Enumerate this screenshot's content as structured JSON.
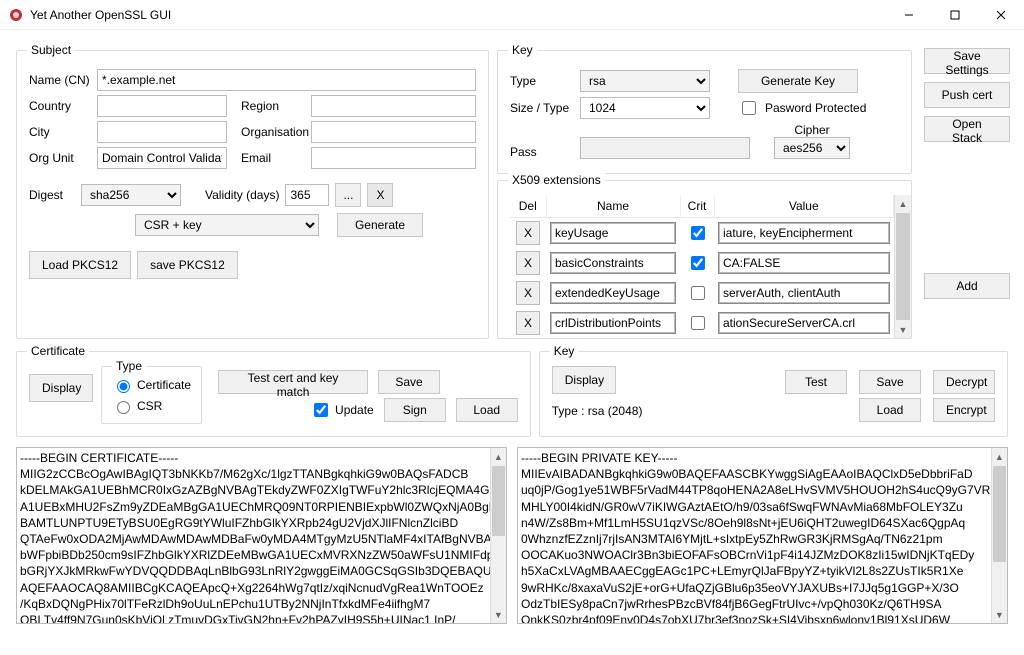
{
  "window": {
    "title": "Yet Another OpenSSL GUI"
  },
  "sidebar_buttons": {
    "save_settings": "Save Settings",
    "push_cert": "Push cert",
    "open_stack": "Open Stack",
    "add": "Add"
  },
  "subject": {
    "legend": "Subject",
    "name_label": "Name (CN)",
    "name_value": "*.example.net",
    "country_label": "Country",
    "country_value": "",
    "region_label": "Region",
    "region_value": "",
    "city_label": "City",
    "city_value": "",
    "org_label": "Organisation",
    "org_value": "",
    "orgunit_label": "Org Unit",
    "orgunit_value": "Domain Control Validated",
    "email_label": "Email",
    "email_value": "",
    "digest_label": "Digest",
    "digest_value": "sha256",
    "validity_label": "Validity (days)",
    "validity_value": "365",
    "mode_value": "CSR + key",
    "generate": "Generate",
    "dots_btn": "...",
    "x_btn": "X",
    "load_pkcs12": "Load PKCS12",
    "save_pkcs12": "save PKCS12"
  },
  "key_cfg": {
    "legend": "Key",
    "type_label": "Type",
    "type_value": "rsa",
    "size_label": "Size / Type",
    "size_value": "1024",
    "pw_protected_label": "Pasword Protected",
    "generate_key": "Generate Key",
    "pass_label": "Pass",
    "pass_value": "",
    "cipher_label": "Cipher",
    "cipher_value": "aes256"
  },
  "extensions": {
    "legend": "X509 extensions",
    "headers": {
      "del": "Del",
      "name": "Name",
      "crit": "Crit",
      "value": "Value"
    },
    "rows": [
      {
        "name": "keyUsage",
        "crit": true,
        "value": "iature, keyEncipherment"
      },
      {
        "name": "basicConstraints",
        "crit": true,
        "value": "CA:FALSE"
      },
      {
        "name": "extendedKeyUsage",
        "crit": false,
        "value": "serverAuth, clientAuth"
      },
      {
        "name": "crlDistributionPoints",
        "crit": false,
        "value": "ationSecureServerCA.crl"
      }
    ]
  },
  "cert_panel": {
    "legend": "Certificate",
    "display": "Display",
    "type_legend": "Type",
    "radio_cert": "Certificate",
    "radio_csr": "CSR",
    "test_match": "Test cert and key match",
    "save": "Save",
    "sign": "Sign",
    "load": "Load",
    "update": "Update"
  },
  "key_panel": {
    "legend": "Key",
    "display": "Display",
    "type_line": "Type :   rsa (2048)",
    "test": "Test",
    "save": "Save",
    "decrypt": "Decrypt",
    "load": "Load",
    "encrypt": "Encrypt"
  },
  "cert_text": "-----BEGIN CERTIFICATE-----\nMIIG2zCCBcOgAwIBAgIQT3bNKKb7/M62gXc/1lgzTTANBgkqhkiG9w0BAQsFADCB\nkDELMAkGA1UEBhMCR0IxGzAZBgNVBAgTEkdyZWF0ZXIgTWFuY2hlc3RlcjEQMA4G\nA1UEBxMHU2FsZm9yZDEaMBgGA1UEChMRQ09NT0RPIENBIExpbWl0ZWQxNjA0BgNV\nBAMTLUNPTU9ETyBSU0EgRG9tYWluIFZhbGlkYXRpb24gU2VjdXJlIFNlcnZlciBD\nQTAeFw0xODA2MjAwMDAwMDAwMDBaFw0yMDA4MTgyMzU5NTlaMF4xITAfBgNVBAsTGERv\nbWFpbiBDb250cm9sIFZhbGlkYXRlZDEeMBwGA1UECxMVRXNzZW50aWFsU1NMIFdp\nbGRjYXJkMRkwFwYDVQQDDBAqLnBlbG93LnRlY2gwggEiMA0GCSqGSIb3DQEBAQUAA4IB\nAQEFAAOCAQ8AMIIBCgKCAQEApcQ+Xg2264hWg7qtIz/xqiNcnudVgRea1WnTOOEz\n/KqBxDQNgPHix70lTFeRzlDh9oUuLnEPchu1UTBy2NNjInTfxkdMFe4iifhgM7\nOBI Tv4ff9N7Gun0sKbViOl zTmuvDGxTivGN2hn+Fv2hPAZyIH9S5h+UINac1 InP/",
  "key_text": "-----BEGIN PRIVATE KEY-----\nMIIEvAIBADANBgkqhkiG9w0BAQEFAASCBKYwggSiAgEAAoIBAQClxD5eDbbriFaD\nuq0jP/Gog1ye51WBF5rVadM44TP8qoHENA2A8eLHvSVMV5HOUOH2hS4ucQ9yG7VR\nMHLY00I4kidN/GR0wV7iKIWGAztAEtO/h9/03sa6fSwqFWNAvMia68MbFOLEY3Zu\nn4W/Zs8Bm+Mf1LmH5SU1qzVSc/8Oeh9l8sNt+jEU6iQHT2uwegID64SXac6QgpAq\n0WhznzfEZznIj7rjIsAN3MTAI6YMjtL+sIxtpEy5ZhRwGR3KjRMSgAq/TN6z21pm\nOOCAKuo3NWOAClr3Bn3biEOFAFsOBCrnVi1pF4i14JZMzDOK8zIi15wIDNjKTqEDy\nh5XaCxLVAgMBAAECggEAGc1PC+LEmyrQlJaFBpyYZ+tyikVl2L8s2ZUsTIk5R1Xe\n9wRHKc/8xaxaVuS2jE+orG+UfaQZjGBlu6p35eoVYJAXUBs+I7JJq5g1GGP+X/3O\nOdzTbIESy8paCn7jwRrhesPBzcBVf84fjB6GegFtrUIvc+/vpQh030Kz/Q6TH9SA\nOnkKS0zbr4pf09Env0D4s7obXU7br3ef3nozSk+SI4Vibsxn6wlonv1Bl91XsUD6W"
}
